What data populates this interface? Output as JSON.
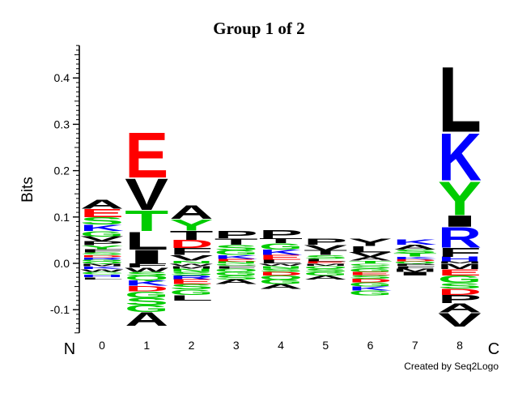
{
  "chart_data": {
    "type": "sequence-logo",
    "title": "Group 1 of 2",
    "ylabel": "Bits",
    "ylim": [
      -0.15,
      0.47
    ],
    "yticks": [
      -0.1,
      0.0,
      0.1,
      0.2,
      0.3,
      0.4
    ],
    "ytick_labels": [
      "-0.1",
      "0.0",
      "0.1",
      "0.2",
      "0.3",
      "0.4"
    ],
    "positions": [
      "0",
      "1",
      "2",
      "3",
      "4",
      "5",
      "6",
      "7",
      "8"
    ],
    "n_label": "N",
    "c_label": "C",
    "credit": "Created by Seq2Logo",
    "colors": {
      "hydrophobic": "#000000",
      "basic": "#0000ff",
      "acidic": "#ff0000",
      "polar": "#00cc00",
      "amide": "#cc00cc"
    },
    "stacks": [
      {
        "position": "0",
        "positive": [
          {
            "letter": "Q",
            "height": 0.004,
            "class": "polar"
          },
          {
            "letter": "G",
            "height": 0.004,
            "class": "polar"
          },
          {
            "letter": "R",
            "height": 0.005,
            "class": "basic"
          },
          {
            "letter": "D",
            "height": 0.005,
            "class": "acidic"
          },
          {
            "letter": "S",
            "height": 0.006,
            "class": "polar"
          },
          {
            "letter": "F",
            "height": 0.007,
            "class": "hydrophobic"
          },
          {
            "letter": "Y",
            "height": 0.008,
            "class": "polar"
          },
          {
            "letter": "P",
            "height": 0.009,
            "class": "hydrophobic"
          },
          {
            "letter": "V",
            "height": 0.01,
            "class": "hydrophobic"
          },
          {
            "letter": "G",
            "height": 0.012,
            "class": "polar"
          },
          {
            "letter": "K",
            "height": 0.014,
            "class": "basic"
          },
          {
            "letter": "S",
            "height": 0.016,
            "class": "polar"
          },
          {
            "letter": "E",
            "height": 0.018,
            "class": "acidic"
          },
          {
            "letter": "A",
            "height": 0.02,
            "class": "hydrophobic"
          }
        ],
        "negative": [
          {
            "letter": "M",
            "height": 0.006,
            "class": "hydrophobic"
          },
          {
            "letter": "K",
            "height": 0.006,
            "class": "basic"
          },
          {
            "letter": "W",
            "height": 0.006,
            "class": "hydrophobic"
          },
          {
            "letter": "C",
            "height": 0.006,
            "class": "polar"
          },
          {
            "letter": "H",
            "height": 0.006,
            "class": "basic"
          },
          {
            "letter": "L",
            "height": 0.005,
            "class": "hydrophobic"
          }
        ]
      },
      {
        "position": "1",
        "positive": [
          {
            "letter": "I",
            "height": 0.03,
            "class": "hydrophobic"
          },
          {
            "letter": "L",
            "height": 0.04,
            "class": "hydrophobic"
          },
          {
            "letter": "T",
            "height": 0.045,
            "class": "polar"
          },
          {
            "letter": "V",
            "height": 0.07,
            "class": "hydrophobic"
          },
          {
            "letter": "E",
            "height": 0.1,
            "class": "acidic"
          }
        ],
        "negative": [
          {
            "letter": "F",
            "height": 0.009,
            "class": "hydrophobic"
          },
          {
            "letter": "W",
            "height": 0.009,
            "class": "hydrophobic"
          },
          {
            "letter": "S",
            "height": 0.009,
            "class": "polar"
          },
          {
            "letter": "Q",
            "height": 0.01,
            "class": "polar"
          },
          {
            "letter": "K",
            "height": 0.011,
            "class": "basic"
          },
          {
            "letter": "D",
            "height": 0.012,
            "class": "acidic"
          },
          {
            "letter": "G",
            "height": 0.014,
            "class": "polar"
          },
          {
            "letter": "S",
            "height": 0.016,
            "class": "polar"
          },
          {
            "letter": "G",
            "height": 0.015,
            "class": "polar"
          },
          {
            "letter": "A",
            "height": 0.03,
            "class": "hydrophobic"
          }
        ]
      },
      {
        "position": "2",
        "positive": [
          {
            "letter": "N",
            "height": 0.006,
            "class": "polar"
          },
          {
            "letter": "V",
            "height": 0.012,
            "class": "hydrophobic"
          },
          {
            "letter": "F",
            "height": 0.015,
            "class": "hydrophobic"
          },
          {
            "letter": "D",
            "height": 0.018,
            "class": "acidic"
          },
          {
            "letter": "T",
            "height": 0.02,
            "class": "hydrophobic"
          },
          {
            "letter": "Y",
            "height": 0.025,
            "class": "polar"
          },
          {
            "letter": "A",
            "height": 0.03,
            "class": "hydrophobic"
          }
        ],
        "negative": [
          {
            "letter": "W",
            "height": 0.005,
            "class": "hydrophobic"
          },
          {
            "letter": "M",
            "height": 0.006,
            "class": "hydrophobic"
          },
          {
            "letter": "N",
            "height": 0.007,
            "class": "polar"
          },
          {
            "letter": "S",
            "height": 0.008,
            "class": "polar"
          },
          {
            "letter": "R",
            "height": 0.009,
            "class": "basic"
          },
          {
            "letter": "E",
            "height": 0.01,
            "class": "acidic"
          },
          {
            "letter": "S",
            "height": 0.011,
            "class": "polar"
          },
          {
            "letter": "G",
            "height": 0.012,
            "class": "polar"
          },
          {
            "letter": "L",
            "height": 0.012,
            "class": "hydrophobic"
          }
        ]
      },
      {
        "position": "3",
        "positive": [
          {
            "letter": "N",
            "height": 0.004,
            "class": "polar"
          },
          {
            "letter": "E",
            "height": 0.006,
            "class": "acidic"
          },
          {
            "letter": "K",
            "height": 0.008,
            "class": "basic"
          },
          {
            "letter": "G",
            "height": 0.01,
            "class": "polar"
          },
          {
            "letter": "S",
            "height": 0.012,
            "class": "polar"
          },
          {
            "letter": "T",
            "height": 0.014,
            "class": "hydrophobic"
          },
          {
            "letter": "P",
            "height": 0.016,
            "class": "hydrophobic"
          }
        ],
        "negative": [
          {
            "letter": "C",
            "height": 0.005,
            "class": "polar"
          },
          {
            "letter": "F",
            "height": 0.006,
            "class": "hydrophobic"
          },
          {
            "letter": "Q",
            "height": 0.007,
            "class": "polar"
          },
          {
            "letter": "G",
            "height": 0.008,
            "class": "polar"
          },
          {
            "letter": "S",
            "height": 0.009,
            "class": "polar"
          },
          {
            "letter": "A",
            "height": 0.01,
            "class": "hydrophobic"
          }
        ]
      },
      {
        "position": "4",
        "positive": [
          {
            "letter": "L",
            "height": 0.008,
            "class": "hydrophobic"
          },
          {
            "letter": "E",
            "height": 0.01,
            "class": "acidic"
          },
          {
            "letter": "K",
            "height": 0.012,
            "class": "basic"
          },
          {
            "letter": "G",
            "height": 0.014,
            "class": "polar"
          },
          {
            "letter": "T",
            "height": 0.01,
            "class": "hydrophobic"
          },
          {
            "letter": "P",
            "height": 0.018,
            "class": "hydrophobic"
          }
        ],
        "negative": [
          {
            "letter": "W",
            "height": 0.005,
            "class": "hydrophobic"
          },
          {
            "letter": "N",
            "height": 0.006,
            "class": "polar"
          },
          {
            "letter": "S",
            "height": 0.007,
            "class": "polar"
          },
          {
            "letter": "D",
            "height": 0.008,
            "class": "acidic"
          },
          {
            "letter": "Q",
            "height": 0.009,
            "class": "polar"
          },
          {
            "letter": "G",
            "height": 0.01,
            "class": "polar"
          },
          {
            "letter": "A",
            "height": 0.01,
            "class": "hydrophobic"
          }
        ]
      },
      {
        "position": "5",
        "positive": [
          {
            "letter": "E",
            "height": 0.004,
            "class": "acidic"
          },
          {
            "letter": "L",
            "height": 0.006,
            "class": "hydrophobic"
          },
          {
            "letter": "S",
            "height": 0.008,
            "class": "polar"
          },
          {
            "letter": "T",
            "height": 0.01,
            "class": "hydrophobic"
          },
          {
            "letter": "V",
            "height": 0.012,
            "class": "hydrophobic"
          },
          {
            "letter": "P",
            "height": 0.014,
            "class": "hydrophobic"
          }
        ],
        "negative": [
          {
            "letter": "M",
            "height": 0.005,
            "class": "hydrophobic"
          },
          {
            "letter": "Q",
            "height": 0.006,
            "class": "polar"
          },
          {
            "letter": "S",
            "height": 0.007,
            "class": "polar"
          },
          {
            "letter": "G",
            "height": 0.008,
            "class": "polar"
          },
          {
            "letter": "A",
            "height": 0.009,
            "class": "hydrophobic"
          }
        ]
      },
      {
        "position": "6",
        "positive": [
          {
            "letter": "T",
            "height": 0.006,
            "class": "polar"
          },
          {
            "letter": "A",
            "height": 0.008,
            "class": "hydrophobic"
          },
          {
            "letter": "V",
            "height": 0.01,
            "class": "hydrophobic"
          },
          {
            "letter": "L",
            "height": 0.014,
            "class": "hydrophobic"
          },
          {
            "letter": "Y",
            "height": 0.016,
            "class": "hydrophobic"
          }
        ],
        "negative": [
          {
            "letter": "C",
            "height": 0.005,
            "class": "polar"
          },
          {
            "letter": "S",
            "height": 0.006,
            "class": "polar"
          },
          {
            "letter": "G",
            "height": 0.007,
            "class": "polar"
          },
          {
            "letter": "E",
            "height": 0.007,
            "class": "acidic"
          },
          {
            "letter": "S",
            "height": 0.008,
            "class": "polar"
          },
          {
            "letter": "D",
            "height": 0.008,
            "class": "acidic"
          },
          {
            "letter": "G",
            "height": 0.009,
            "class": "polar"
          },
          {
            "letter": "K",
            "height": 0.009,
            "class": "basic"
          },
          {
            "letter": "G",
            "height": 0.01,
            "class": "polar"
          }
        ]
      },
      {
        "position": "7",
        "positive": [
          {
            "letter": "Q",
            "height": 0.004,
            "class": "polar"
          },
          {
            "letter": "D",
            "height": 0.005,
            "class": "acidic"
          },
          {
            "letter": "K",
            "height": 0.006,
            "class": "basic"
          },
          {
            "letter": "T",
            "height": 0.007,
            "class": "polar"
          },
          {
            "letter": "S",
            "height": 0.008,
            "class": "polar"
          },
          {
            "letter": "A",
            "height": 0.01,
            "class": "hydrophobic"
          },
          {
            "letter": "K",
            "height": 0.012,
            "class": "basic"
          }
        ],
        "negative": [
          {
            "letter": "P",
            "height": 0.005,
            "class": "hydrophobic"
          },
          {
            "letter": "F",
            "height": 0.006,
            "class": "hydrophobic"
          },
          {
            "letter": "M",
            "height": 0.007,
            "class": "hydrophobic"
          },
          {
            "letter": "I",
            "height": 0.008,
            "class": "hydrophobic"
          }
        ]
      },
      {
        "position": "8",
        "positive": [
          {
            "letter": "M",
            "height": 0.004,
            "class": "hydrophobic"
          },
          {
            "letter": "H",
            "height": 0.01,
            "class": "basic"
          },
          {
            "letter": "F",
            "height": 0.02,
            "class": "hydrophobic"
          },
          {
            "letter": "R",
            "height": 0.045,
            "class": "basic"
          },
          {
            "letter": "I",
            "height": 0.025,
            "class": "hydrophobic"
          },
          {
            "letter": "Y",
            "height": 0.075,
            "class": "polar"
          },
          {
            "letter": "K",
            "height": 0.105,
            "class": "basic"
          },
          {
            "letter": "L",
            "height": 0.145,
            "class": "hydrophobic"
          }
        ],
        "negative": [
          {
            "letter": "M",
            "height": 0.012,
            "class": "hydrophobic"
          },
          {
            "letter": "E",
            "height": 0.014,
            "class": "acidic"
          },
          {
            "letter": "G",
            "height": 0.016,
            "class": "polar"
          },
          {
            "letter": "S",
            "height": 0.012,
            "class": "polar"
          },
          {
            "letter": "D",
            "height": 0.014,
            "class": "acidic"
          },
          {
            "letter": "P",
            "height": 0.018,
            "class": "hydrophobic"
          },
          {
            "letter": "A",
            "height": 0.02,
            "class": "hydrophobic"
          },
          {
            "letter": "V",
            "height": 0.03,
            "class": "hydrophobic"
          }
        ]
      }
    ]
  }
}
